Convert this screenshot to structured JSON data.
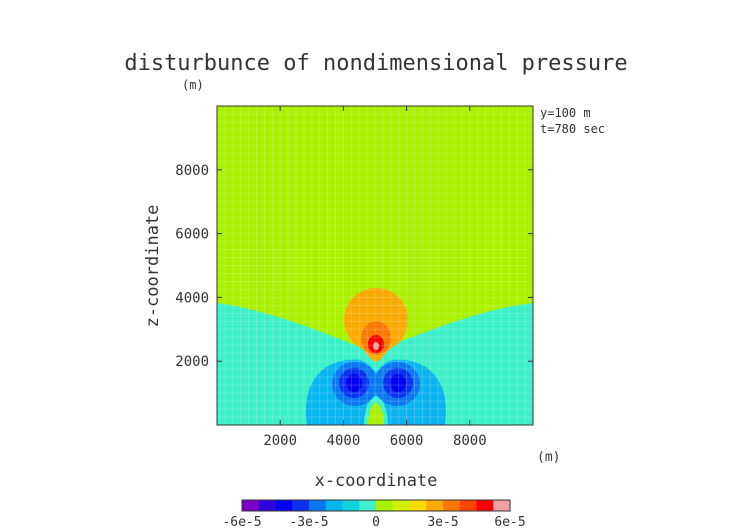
{
  "chart_data": {
    "type": "heatmap",
    "title": "disturbunce of nondimensional pressure",
    "unit_label_y": "(m)",
    "unit_label_x": "(m)",
    "xlabel": "x-coordinate",
    "ylabel": "z-coordinate",
    "annotations": [
      "y=100 m",
      "t=780 sec"
    ],
    "xlim": [
      0,
      10000
    ],
    "ylim": [
      0,
      10000
    ],
    "x_ticks": [
      2000,
      4000,
      6000,
      8000
    ],
    "y_ticks": [
      2000,
      4000,
      6000,
      8000
    ],
    "x_tick_labels": [
      "2000",
      "4000",
      "6000",
      "8000"
    ],
    "y_tick_labels": [
      "2000",
      "4000",
      "6000",
      "8000"
    ],
    "grid": true,
    "colorbar": {
      "range": [
        -6e-05,
        6e-05
      ],
      "tick_labels": [
        "-6e-5",
        "-3e-5",
        "0",
        "3e-5",
        "6e-5"
      ],
      "colors": [
        "#7a00c8",
        "#3200dc",
        "#0000f0",
        "#0a32f0",
        "#0a78f0",
        "#0ab4f0",
        "#14d2dc",
        "#3cf0c8",
        "#aaf000",
        "#d2f000",
        "#fadc00",
        "#faaa00",
        "#fa7800",
        "#fa4600",
        "#fa0000",
        "#f0a0a0"
      ]
    },
    "regions": [
      {
        "name": "background",
        "level": "0 to 7.5e-6"
      },
      {
        "name": "lower-layer",
        "level": "-7.5e-6 to 0"
      },
      {
        "name": "upper-positive-lobe",
        "center": [
          4900,
          3300
        ],
        "level": "7.5e-6 to 1.5e-5"
      },
      {
        "name": "upper-core",
        "center": [
          4950,
          2700
        ],
        "level": "up to 4.5e-5"
      },
      {
        "name": "left-negative-cell",
        "center": [
          4400,
          1300
        ],
        "level": "down to -3.75e-5"
      },
      {
        "name": "right-negative-cell",
        "center": [
          5750,
          1300
        ],
        "level": "down to -3.75e-5"
      },
      {
        "name": "bottom-positive-spot",
        "center": [
          5000,
          300
        ],
        "level": "0 to 7.5e-6"
      }
    ]
  }
}
